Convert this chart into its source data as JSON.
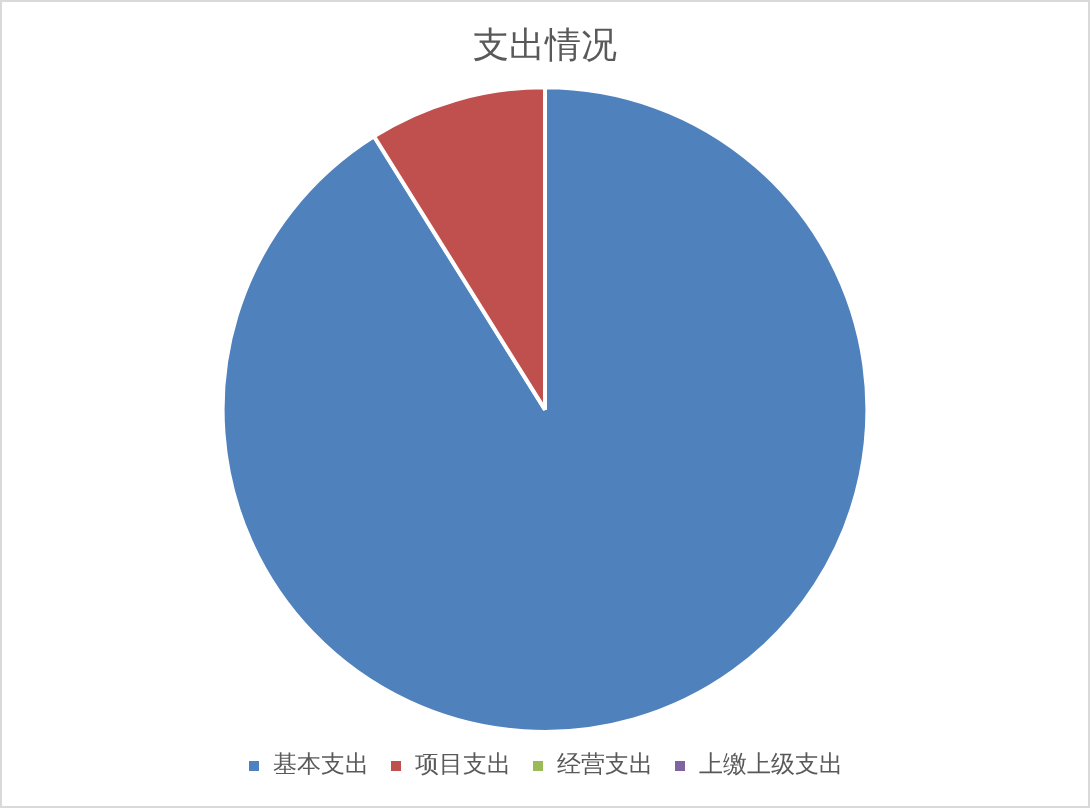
{
  "chart_data": {
    "type": "pie",
    "title": "支出情况",
    "categories": [
      "基本支出",
      "项目支出",
      "经营支出",
      "上缴上级支出"
    ],
    "values": [
      91.1,
      8.9,
      0,
      0
    ],
    "colors": [
      "#4f81bd",
      "#c0504d",
      "#9bbb59",
      "#8064a2"
    ],
    "legend": "bottom"
  }
}
